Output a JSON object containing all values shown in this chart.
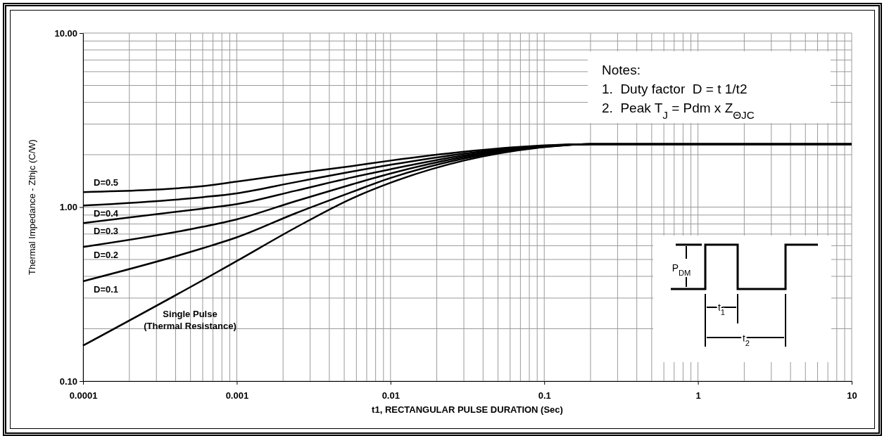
{
  "chart_data": {
    "type": "line",
    "xlabel": "t1, RECTANGULAR PULSE DURATION (Sec)",
    "ylabel": "Thermal Impedance - Zthjc (C/W)",
    "x": [
      0.0001,
      0.0006,
      0.001,
      0.0024,
      0.0056,
      0.01,
      0.03,
      0.1,
      0.2,
      1,
      10
    ],
    "series": [
      {
        "name": "D=0.5",
        "color": "#000000",
        "values": [
          1.22,
          1.32,
          1.4,
          1.56,
          1.72,
          1.85,
          2.08,
          2.26,
          2.3,
          2.3,
          2.3
        ]
      },
      {
        "name": "D=0.4",
        "color": "#000000",
        "values": [
          1.02,
          1.14,
          1.2,
          1.39,
          1.6,
          1.75,
          2.03,
          2.25,
          2.3,
          2.3,
          2.3
        ]
      },
      {
        "name": "D=0.3",
        "color": "#000000",
        "values": [
          0.81,
          0.98,
          1.04,
          1.24,
          1.48,
          1.65,
          1.98,
          2.24,
          2.3,
          2.3,
          2.3
        ]
      },
      {
        "name": "D=0.2",
        "color": "#000000",
        "values": [
          0.59,
          0.77,
          0.85,
          1.08,
          1.35,
          1.56,
          1.94,
          2.23,
          2.3,
          2.3,
          2.3
        ]
      },
      {
        "name": "D=0.1",
        "color": "#000000",
        "values": [
          0.375,
          0.58,
          0.67,
          0.92,
          1.22,
          1.47,
          1.9,
          2.22,
          2.3,
          2.3,
          2.3
        ]
      },
      {
        "name": "Single Pulse\n(Thermal Resistance)",
        "color": "#000000",
        "values": [
          0.16,
          0.38,
          0.49,
          0.76,
          1.12,
          1.38,
          1.85,
          2.21,
          2.3,
          2.3,
          2.3
        ]
      }
    ],
    "xlim": [
      0.0001,
      10
    ],
    "xticks": [
      0.0001,
      0.001,
      0.01,
      0.1,
      1,
      10
    ],
    "ylim": [
      0.1,
      10
    ],
    "yticks": [
      {
        "value": 0.1,
        "label": "0.10"
      },
      {
        "value": 1,
        "label": "1.00"
      },
      {
        "value": 10,
        "label": "10.00"
      }
    ],
    "log": "xy",
    "grid": true,
    "legend": false,
    "marker": "none",
    "line_style": "solid",
    "annotations": [
      "Notes:",
      "1.  Duty factor  D = t 1/t2",
      "2.  Peak T$_{J}$ = Pdm x Z$_{ΘJC}$",
      "P$_{DM}$",
      "t$_{1}$",
      "t$_{2}$"
    ]
  }
}
